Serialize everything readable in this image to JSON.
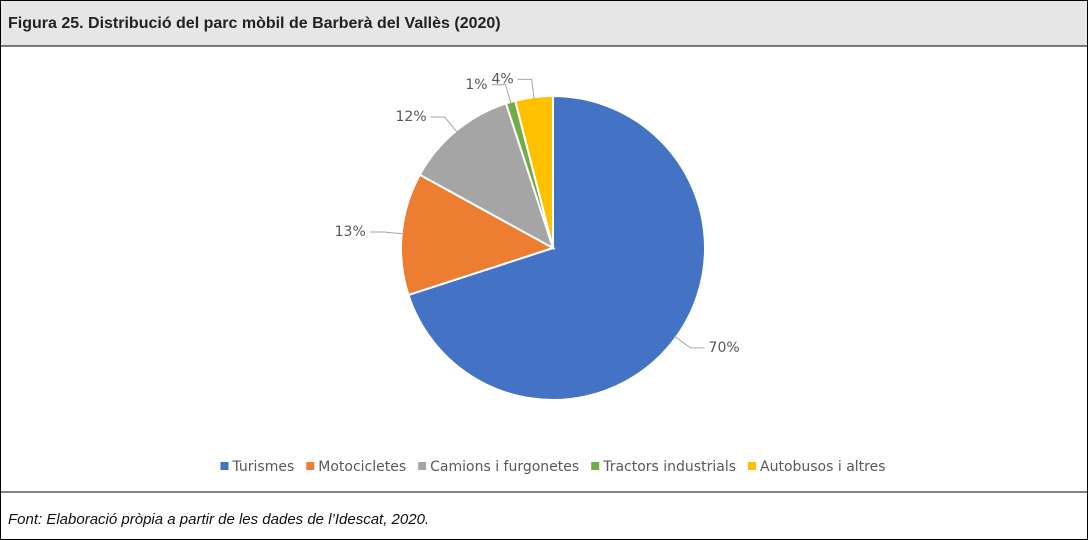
{
  "caption": "Figura 25. Distribució del parc mòbil de Barberà del Vallès (2020)",
  "source": "Font: Elaboració pròpia a partir de les dades de l’Idescat, 2020.",
  "chart_data": {
    "type": "pie",
    "categories": [
      "Turismes",
      "Motocicletes",
      "Camions i furgonetes",
      "Tractors industrials",
      "Autobusos i altres"
    ],
    "values": [
      70,
      13,
      12,
      1,
      4
    ],
    "value_labels": [
      "70%",
      "13%",
      "12%",
      "1%",
      "4%"
    ],
    "colors": [
      "#4472c4",
      "#ed7d31",
      "#a5a5a5",
      "#70ad47",
      "#ffc000"
    ],
    "start_angle": 0,
    "direction": "clockwise",
    "legend": "bottom"
  }
}
